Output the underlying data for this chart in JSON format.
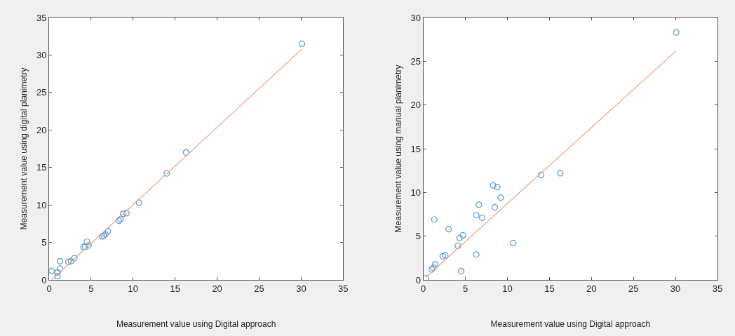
{
  "chart_data": [
    {
      "type": "scatter",
      "xlabel": "Measurement value using Digital approach",
      "ylabel": "Measurement value using digital planimetry",
      "xlim": [
        0,
        35
      ],
      "ylim": [
        0,
        35
      ],
      "xticks": [
        0,
        5,
        10,
        15,
        20,
        25,
        30,
        35
      ],
      "yticks": [
        0,
        5,
        10,
        15,
        20,
        25,
        30,
        35
      ],
      "series": [
        {
          "marker": "circle",
          "color": "#5b9bd5",
          "x": [
            0.3,
            1.0,
            1.0,
            1.3,
            1.3,
            2.3,
            2.6,
            3.0,
            4.1,
            4.3,
            4.5,
            4.7,
            6.3,
            6.5,
            6.7,
            7.0,
            8.3,
            8.5,
            8.8,
            9.2,
            10.7,
            14.0,
            16.3,
            30.1
          ],
          "values": [
            1.2,
            0.5,
            1.0,
            1.5,
            2.5,
            2.4,
            2.5,
            2.9,
            4.4,
            4.4,
            5.1,
            4.6,
            5.8,
            5.9,
            6.1,
            6.5,
            7.9,
            8.1,
            8.8,
            8.9,
            10.3,
            14.2,
            17.0,
            31.5
          ]
        },
        {
          "type": "line",
          "marker": "none",
          "color": "#f0a07a",
          "x": [
            0.3,
            30.1
          ],
          "values": [
            0.0,
            30.8
          ]
        }
      ]
    },
    {
      "type": "scatter",
      "xlabel": "Measurement value using Digital approach",
      "ylabel": "Measurement value using manual planimetry",
      "xlim": [
        0,
        35
      ],
      "ylim": [
        0,
        30
      ],
      "xticks": [
        0,
        5,
        10,
        15,
        20,
        25,
        30,
        35
      ],
      "yticks": [
        0,
        5,
        10,
        15,
        20,
        25,
        30
      ],
      "series": [
        {
          "marker": "circle",
          "color": "#5b9bd5",
          "x": [
            0.3,
            1.0,
            1.2,
            1.4,
            1.3,
            2.3,
            2.6,
            3.0,
            4.1,
            4.3,
            4.5,
            4.7,
            6.3,
            6.3,
            6.6,
            7.0,
            8.3,
            8.5,
            8.8,
            9.2,
            10.7,
            14.0,
            16.3,
            30.1
          ],
          "values": [
            0.2,
            1.2,
            1.4,
            1.8,
            6.9,
            2.7,
            2.8,
            5.8,
            3.9,
            4.8,
            1.0,
            5.1,
            2.9,
            7.4,
            8.6,
            7.1,
            10.8,
            8.3,
            10.6,
            9.4,
            4.2,
            12.0,
            12.2,
            28.3
          ]
        },
        {
          "type": "line",
          "marker": "none",
          "color": "#f0a07a",
          "x": [
            0.3,
            30.1
          ],
          "values": [
            0.3,
            26.2
          ]
        }
      ]
    }
  ]
}
